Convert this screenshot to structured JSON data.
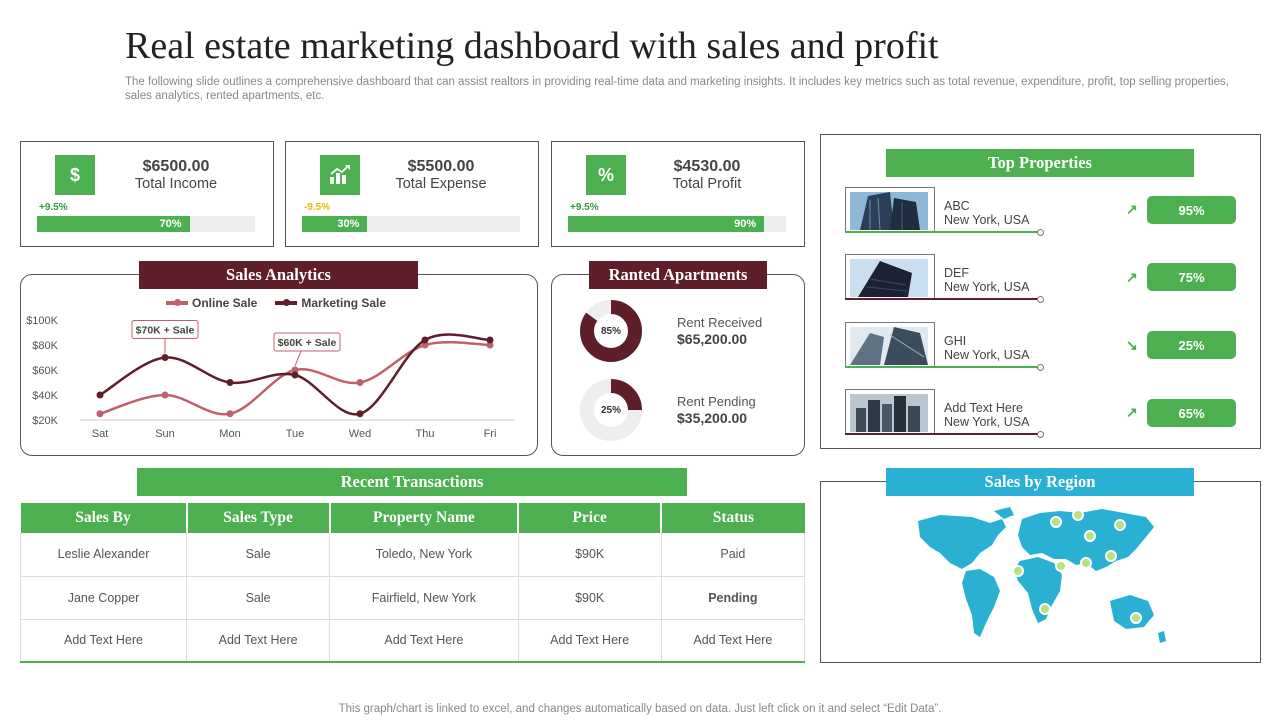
{
  "header": {
    "title": "Real estate marketing dashboard with sales and profit",
    "subtitle": "The following slide outlines a comprehensive dashboard that can assist realtors in providing real-time data and marketing insights. It includes key metrics such as total revenue, expenditure, profit, top selling properties, sales analytics, rented apartments, etc."
  },
  "kpis": [
    {
      "icon": "dollar-icon",
      "icon_text": "$",
      "value": "$6500.00",
      "label": "Total Income",
      "change": "+9.5%",
      "change_color": "#2e9c3f",
      "progress": 0.7,
      "progress_label": "70%"
    },
    {
      "icon": "bar-chart-icon",
      "icon_text": "",
      "value": "$5500.00",
      "label": "Total Expense",
      "change": "-9.5%",
      "change_color": "#e6b800",
      "progress": 0.3,
      "progress_label": "30%"
    },
    {
      "icon": "percent-icon",
      "icon_text": "%",
      "value": "$4530.00",
      "label": "Total Profit",
      "change": "+9.5%",
      "change_color": "#2e9c3f",
      "progress": 0.9,
      "progress_label": "90%"
    }
  ],
  "sales_analytics": {
    "title": "Sales Analytics",
    "legend": [
      "Online Sale",
      "Marketing Sale"
    ],
    "callouts": [
      "$70K + Sale",
      "$60K + Sale"
    ]
  },
  "chart_data": {
    "type": "line",
    "categories": [
      "Sat",
      "Sun",
      "Mon",
      "Tue",
      "Wed",
      "Thu",
      "Fri"
    ],
    "series": [
      {
        "name": "Online Sale",
        "color": "#c0606a",
        "values": [
          25000,
          40000,
          25000,
          60000,
          50000,
          80000,
          80000
        ]
      },
      {
        "name": "Marketing Sale",
        "color": "#5e1f2b",
        "values": [
          40000,
          70000,
          50000,
          56000,
          25000,
          84000,
          84000
        ]
      }
    ],
    "y_ticks": [
      "$20K",
      "$40K",
      "$60K",
      "$80K",
      "$100K"
    ],
    "ylim": [
      20000,
      100000
    ],
    "grid": false
  },
  "rented": {
    "title": "Ranted Apartments",
    "items": [
      {
        "label": "Rent Received",
        "value": "$65,200.00",
        "pct": 85,
        "pct_label": "85%"
      },
      {
        "label": "Rent Pending",
        "value": "$35,200.00",
        "pct": 25,
        "pct_label": "25%"
      }
    ]
  },
  "top_properties": {
    "title": "Top Properties",
    "items": [
      {
        "name": "ABC",
        "location": "New York,  USA",
        "trend": "up",
        "pct": "95%",
        "line_color": "#4caf50"
      },
      {
        "name": "DEF",
        "location": "New York,  USA",
        "trend": "up",
        "pct": "75%",
        "line_color": "#5e1f2b"
      },
      {
        "name": "GHI",
        "location": "New York,  USA",
        "trend": "down",
        "pct": "25%",
        "line_color": "#4caf50"
      },
      {
        "name": "Add Text Here",
        "location": "New York,  USA",
        "trend": "up",
        "pct": "65%",
        "line_color": "#5e1f2b"
      }
    ]
  },
  "transactions": {
    "title": "Recent Transactions",
    "columns": [
      "Sales By",
      "Sales Type",
      "Property Name",
      "Price",
      "Status"
    ],
    "rows": [
      [
        "Leslie Alexander",
        "Sale",
        "Toledo, New York",
        "$90K",
        "Paid"
      ],
      [
        "Jane Copper",
        "Sale",
        "Fairfield, New York",
        "$90K",
        "Pending"
      ],
      [
        "Add Text Here",
        "Add Text Here",
        "Add Text Here",
        "Add Text Here",
        "Add Text Here"
      ]
    ]
  },
  "region": {
    "title": "Sales by Region",
    "map_color": "#29b0d3"
  },
  "footer": {
    "note": "This graph/chart is linked to excel,  and changes automatically based on data. Just left click on it and select “Edit Data”."
  }
}
